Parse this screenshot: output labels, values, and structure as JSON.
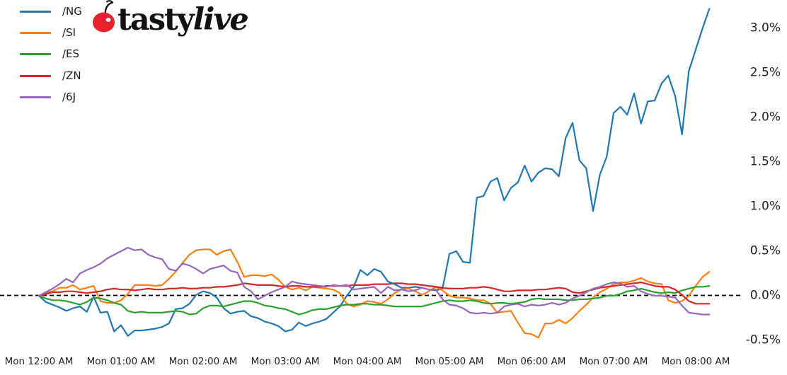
{
  "branding": {
    "logo_word_upright": "tasty",
    "logo_word_italic": "live",
    "logo_text_color": "#141110",
    "cherry_fruit_color": "#e8212e",
    "cherry_highlight_color": "#ffffff",
    "cherry_stem_color": "#17110f"
  },
  "chart_data": {
    "type": "line",
    "title": "",
    "xlabel": "",
    "ylabel": "",
    "x_unit": "minutes since Mon 12:00 AM",
    "y_unit": "percent change (%)",
    "grid": false,
    "legend_position": "upper_left",
    "y_axis_side": "right",
    "ylim": [
      -0.55,
      3.35
    ],
    "xlim_minutes": [
      0,
      490
    ],
    "baseline": {
      "value": 0.0,
      "style": "dashed",
      "color": "#000000"
    },
    "y_ticks": [
      {
        "label": "3.0%",
        "value": 3.0
      },
      {
        "label": "2.5%",
        "value": 2.5
      },
      {
        "label": "2.0%",
        "value": 2.0
      },
      {
        "label": "1.5%",
        "value": 1.5
      },
      {
        "label": "1.0%",
        "value": 1.0
      },
      {
        "label": "0.5%",
        "value": 0.5
      },
      {
        "label": "0.0%",
        "value": 0.0
      },
      {
        "label": "-0.5%",
        "value": -0.5
      }
    ],
    "x_ticks": [
      {
        "label": "Mon 12:00 AM",
        "minutes": 0
      },
      {
        "label": "Mon 01:00 AM",
        "minutes": 60
      },
      {
        "label": "Mon 02:00 AM",
        "minutes": 120
      },
      {
        "label": "Mon 03:00 AM",
        "minutes": 180
      },
      {
        "label": "Mon 04:00 AM",
        "minutes": 240
      },
      {
        "label": "Mon 05:00 AM",
        "minutes": 300
      },
      {
        "label": "Mon 06:00 AM",
        "minutes": 360
      },
      {
        "label": "Mon 07:00 AM",
        "minutes": 420
      },
      {
        "label": "Mon 08:00 AM",
        "minutes": 480
      }
    ],
    "x": [
      0,
      5,
      10,
      15,
      20,
      25,
      30,
      35,
      40,
      45,
      50,
      55,
      60,
      65,
      70,
      75,
      80,
      85,
      90,
      95,
      100,
      105,
      110,
      115,
      120,
      125,
      130,
      135,
      140,
      145,
      150,
      155,
      160,
      165,
      170,
      175,
      180,
      185,
      190,
      195,
      200,
      205,
      210,
      215,
      220,
      225,
      230,
      235,
      240,
      245,
      250,
      255,
      260,
      265,
      270,
      275,
      280,
      285,
      290,
      295,
      300,
      305,
      310,
      315,
      320,
      325,
      330,
      335,
      340,
      345,
      350,
      355,
      360,
      365,
      370,
      375,
      380,
      385,
      390,
      395,
      400,
      405,
      410,
      415,
      420,
      425,
      430,
      435,
      440,
      445,
      450,
      455,
      460,
      465,
      470,
      475,
      480,
      485,
      490
    ],
    "series": [
      {
        "name": "/NG",
        "color": "#1f77b4",
        "values": [
          0.0,
          -0.07,
          -0.1,
          -0.13,
          -0.17,
          -0.14,
          -0.12,
          -0.18,
          -0.01,
          -0.19,
          -0.18,
          -0.4,
          -0.33,
          -0.45,
          -0.39,
          -0.39,
          -0.38,
          -0.37,
          -0.35,
          -0.31,
          -0.15,
          -0.14,
          -0.09,
          0.01,
          0.05,
          0.03,
          -0.02,
          -0.14,
          -0.2,
          -0.18,
          -0.17,
          -0.23,
          -0.25,
          -0.29,
          -0.31,
          -0.34,
          -0.4,
          -0.38,
          -0.3,
          -0.34,
          -0.31,
          -0.29,
          -0.26,
          -0.19,
          -0.12,
          0.0,
          0.1,
          0.29,
          0.23,
          0.3,
          0.27,
          0.16,
          0.13,
          0.09,
          0.09,
          0.1,
          0.09,
          0.07,
          0.06,
          0.08,
          0.47,
          0.5,
          0.38,
          0.37,
          1.1,
          1.12,
          1.28,
          1.32,
          1.07,
          1.21,
          1.27,
          1.46,
          1.28,
          1.38,
          1.43,
          1.42,
          1.34,
          1.77,
          1.94,
          1.52,
          1.43,
          0.95,
          1.36,
          1.56,
          2.05,
          2.12,
          2.03,
          2.27,
          1.93,
          2.18,
          2.19,
          2.38,
          2.47,
          2.24,
          1.81,
          2.52,
          2.76,
          3.0,
          3.22
        ]
      },
      {
        "name": "/SI",
        "color": "#ff7f0e",
        "values": [
          0.0,
          0.03,
          0.05,
          0.09,
          0.09,
          0.12,
          0.07,
          0.09,
          0.11,
          -0.06,
          -0.08,
          -0.08,
          -0.05,
          0.02,
          0.12,
          0.12,
          0.12,
          0.11,
          0.12,
          0.19,
          0.27,
          0.37,
          0.46,
          0.51,
          0.52,
          0.52,
          0.46,
          0.5,
          0.52,
          0.38,
          0.21,
          0.23,
          0.23,
          0.22,
          0.24,
          0.18,
          0.1,
          0.07,
          0.09,
          0.06,
          0.1,
          0.09,
          0.08,
          0.07,
          0.03,
          -0.09,
          -0.12,
          -0.1,
          -0.06,
          -0.07,
          -0.09,
          -0.04,
          0.03,
          0.07,
          0.08,
          0.05,
          0.01,
          0.05,
          0.1,
          0.06,
          0.0,
          -0.02,
          -0.02,
          -0.03,
          -0.05,
          -0.05,
          -0.09,
          -0.19,
          -0.18,
          -0.17,
          -0.3,
          -0.42,
          -0.43,
          -0.47,
          -0.31,
          -0.31,
          -0.27,
          -0.31,
          -0.25,
          -0.17,
          -0.1,
          -0.02,
          0.04,
          0.08,
          0.13,
          0.15,
          0.15,
          0.17,
          0.2,
          0.16,
          0.14,
          0.13,
          -0.05,
          -0.08,
          -0.06,
          0.0,
          0.11,
          0.21,
          0.27
        ]
      },
      {
        "name": "/ES",
        "color": "#2ca02c",
        "values": [
          0.0,
          -0.03,
          -0.05,
          -0.05,
          -0.06,
          -0.08,
          -0.1,
          -0.07,
          -0.02,
          -0.03,
          -0.05,
          -0.08,
          -0.1,
          -0.17,
          -0.19,
          -0.18,
          -0.19,
          -0.19,
          -0.19,
          -0.18,
          -0.17,
          -0.18,
          -0.21,
          -0.2,
          -0.14,
          -0.11,
          -0.11,
          -0.12,
          -0.1,
          -0.08,
          -0.06,
          -0.06,
          -0.08,
          -0.11,
          -0.12,
          -0.14,
          -0.15,
          -0.18,
          -0.21,
          -0.19,
          -0.16,
          -0.15,
          -0.15,
          -0.13,
          -0.11,
          -0.1,
          -0.1,
          -0.09,
          -0.09,
          -0.1,
          -0.1,
          -0.11,
          -0.12,
          -0.12,
          -0.12,
          -0.12,
          -0.12,
          -0.1,
          -0.08,
          -0.06,
          -0.05,
          -0.06,
          -0.06,
          -0.05,
          -0.06,
          -0.08,
          -0.09,
          -0.08,
          -0.08,
          -0.09,
          -0.08,
          -0.07,
          -0.04,
          -0.03,
          -0.04,
          -0.04,
          -0.04,
          -0.05,
          -0.05,
          -0.04,
          -0.04,
          -0.03,
          -0.02,
          0.0,
          0.0,
          0.02,
          0.05,
          0.06,
          0.08,
          0.06,
          0.04,
          0.03,
          0.04,
          0.03,
          0.06,
          0.08,
          0.1,
          0.1,
          0.11
        ]
      },
      {
        "name": "/ZN",
        "color": "#d62728",
        "values": [
          0.0,
          0.02,
          0.04,
          0.04,
          0.05,
          0.05,
          0.04,
          0.03,
          0.04,
          0.05,
          0.07,
          0.08,
          0.07,
          0.07,
          0.06,
          0.07,
          0.08,
          0.07,
          0.07,
          0.08,
          0.08,
          0.09,
          0.08,
          0.08,
          0.09,
          0.09,
          0.1,
          0.1,
          0.11,
          0.12,
          0.14,
          0.13,
          0.12,
          0.12,
          0.12,
          0.11,
          0.1,
          0.11,
          0.11,
          0.1,
          0.1,
          0.1,
          0.11,
          0.11,
          0.11,
          0.11,
          0.12,
          0.12,
          0.12,
          0.13,
          0.13,
          0.13,
          0.14,
          0.14,
          0.13,
          0.13,
          0.12,
          0.11,
          0.1,
          0.09,
          0.08,
          0.08,
          0.08,
          0.09,
          0.09,
          0.1,
          0.09,
          0.07,
          0.05,
          0.05,
          0.06,
          0.06,
          0.06,
          0.07,
          0.07,
          0.08,
          0.09,
          0.08,
          0.04,
          0.03,
          0.05,
          0.07,
          0.09,
          0.1,
          0.11,
          0.12,
          0.13,
          0.14,
          0.15,
          0.13,
          0.11,
          0.1,
          0.1,
          0.07,
          0.01,
          -0.06,
          -0.09,
          -0.09,
          -0.09
        ]
      },
      {
        "name": "/6J",
        "color": "#9467bd",
        "values": [
          0.0,
          0.04,
          0.08,
          0.13,
          0.19,
          0.15,
          0.25,
          0.29,
          0.32,
          0.36,
          0.42,
          0.46,
          0.5,
          0.54,
          0.51,
          0.52,
          0.46,
          0.43,
          0.41,
          0.3,
          0.28,
          0.36,
          0.34,
          0.3,
          0.25,
          0.3,
          0.32,
          0.34,
          0.28,
          0.26,
          0.1,
          0.05,
          -0.04,
          0.0,
          0.04,
          0.07,
          0.1,
          0.16,
          0.14,
          0.13,
          0.12,
          0.11,
          0.1,
          0.12,
          0.11,
          0.12,
          0.07,
          0.08,
          0.09,
          0.1,
          0.03,
          0.1,
          0.06,
          0.07,
          0.05,
          0.06,
          0.09,
          0.07,
          0.07,
          -0.04,
          -0.1,
          -0.11,
          -0.14,
          -0.19,
          -0.2,
          -0.19,
          -0.2,
          -0.19,
          -0.12,
          -0.1,
          -0.09,
          -0.12,
          -0.1,
          -0.11,
          -0.1,
          -0.08,
          -0.1,
          -0.08,
          -0.03,
          0.0,
          0.04,
          0.08,
          0.1,
          0.13,
          0.15,
          0.14,
          0.1,
          0.11,
          0.05,
          0.02,
          0.0,
          0.0,
          -0.01,
          -0.02,
          -0.11,
          -0.19,
          -0.2,
          -0.21,
          -0.21
        ]
      }
    ]
  }
}
